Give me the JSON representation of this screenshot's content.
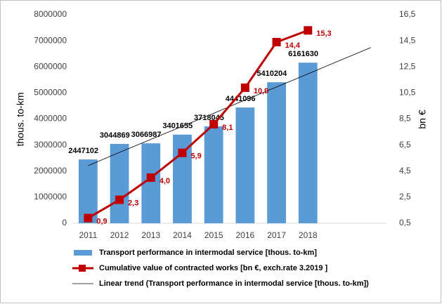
{
  "chart_data": {
    "type": "bar-line",
    "categories": [
      "2011",
      "2012",
      "2013",
      "2014",
      "2015",
      "2016",
      "2017",
      "2018",
      null,
      null
    ],
    "series": [
      {
        "name": "Transport performance in intermodal service [thous. to-km]",
        "type": "bar",
        "color": "#5b9bd5",
        "values": [
          2447102,
          3044869,
          3066987,
          3401655,
          3718045,
          4441096,
          5410204,
          6161630,
          null,
          null
        ]
      },
      {
        "name": "Cumulative value of contracted works  [bn €, exch.rate 3.2019 ]",
        "type": "line",
        "axis": "y2",
        "color": "#c00000",
        "values": [
          0.9,
          2.3,
          4.0,
          5.9,
          8.1,
          10.9,
          14.4,
          15.3,
          null,
          null
        ],
        "value_labels": [
          "0,9",
          "2,3",
          "4,0",
          "5,9",
          "8,1",
          "10,9",
          "14,4",
          "15,3",
          null,
          null
        ]
      },
      {
        "name": "Linear trend (Transport performance in intermodal service [thous. to-km])",
        "type": "trend",
        "color": "#000000",
        "values": [
          2210000,
          2720000,
          3220000,
          3720000,
          4220000,
          4730000,
          5230000,
          5730000,
          6240000,
          6740000
        ]
      }
    ],
    "y_label": "thous. to-km",
    "y2_label": "bn €",
    "ylim": [
      0,
      8000000
    ],
    "yticks": [
      0,
      1000000,
      2000000,
      3000000,
      4000000,
      5000000,
      6000000,
      7000000,
      8000000
    ],
    "y2lim": [
      0.5,
      16.5
    ],
    "y2ticks": [
      {
        "value": 0.5,
        "label": "0,5"
      },
      {
        "value": 2.5,
        "label": "2,5"
      },
      {
        "value": 4.5,
        "label": "4,5"
      },
      {
        "value": 6.5,
        "label": "6,5"
      },
      {
        "value": 8.5,
        "label": "8,5"
      },
      {
        "value": 10.5,
        "label": "10,5"
      },
      {
        "value": 12.5,
        "label": "12,5"
      },
      {
        "value": 14.5,
        "label": "14,5"
      },
      {
        "value": 16.5,
        "label": "16,5"
      }
    ],
    "grid": false
  }
}
